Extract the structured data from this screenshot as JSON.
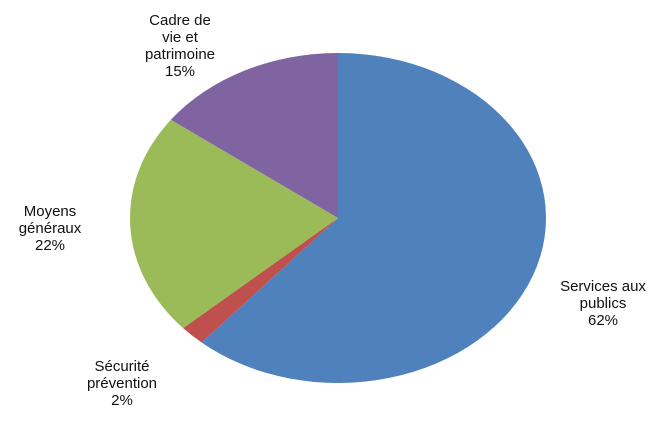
{
  "chart_data": {
    "type": "pie",
    "categories": [
      "Services aux publics",
      "Sécurité prévention",
      "Moyens généraux",
      "Cadre de vie et patrimoine"
    ],
    "values": [
      62,
      2,
      22,
      15
    ],
    "value_labels": [
      "62%",
      "2%",
      "22%",
      "15%"
    ],
    "colors": [
      "#4f81bd",
      "#c0504d",
      "#9bbb59",
      "#8064a2"
    ]
  }
}
